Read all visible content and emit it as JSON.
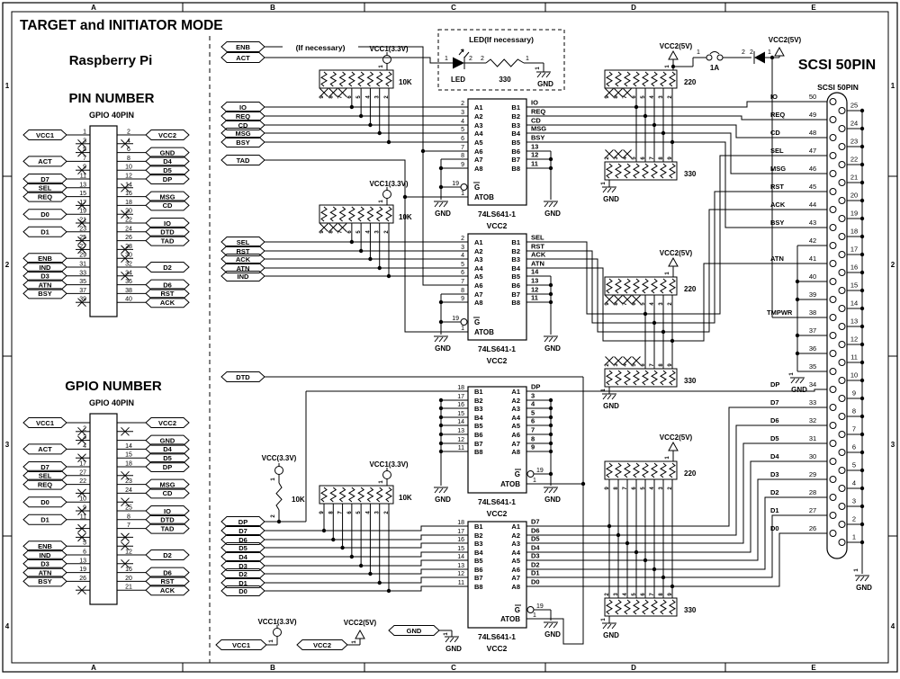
{
  "title": "TARGET and INITIATOR MODE",
  "ruler": {
    "cols": [
      "A",
      "B",
      "C",
      "D",
      "E"
    ],
    "rows": [
      "1",
      "2",
      "3",
      "4"
    ]
  },
  "raspberry": {
    "label": "Raspberry Pi",
    "pin_block": {
      "title": "PIN NUMBER",
      "subtitle": "GPIO 40PIN",
      "rows": [
        [
          "VCC1",
          "1",
          0,
          "2",
          "VCC2",
          0
        ],
        [
          "",
          "3",
          1,
          "4",
          "",
          1
        ],
        [
          "",
          "5",
          1,
          "6",
          "GND",
          0
        ],
        [
          "ACT",
          "7",
          0,
          "8",
          "D4",
          0
        ],
        [
          "",
          "9",
          1,
          "10",
          "D5",
          0
        ],
        [
          "D7",
          "11",
          0,
          "12",
          "DP",
          0
        ],
        [
          "SEL",
          "13",
          0,
          "14",
          "",
          1
        ],
        [
          "REQ",
          "15",
          0,
          "16",
          "MSG",
          0
        ],
        [
          "",
          "17",
          1,
          "18",
          "CD",
          0
        ],
        [
          "D0",
          "19",
          0,
          "20",
          "",
          1
        ],
        [
          "",
          "21",
          1,
          "22",
          "IO",
          0
        ],
        [
          "D1",
          "23",
          0,
          "24",
          "DTD",
          0
        ],
        [
          "",
          "25",
          1,
          "26",
          "TAD",
          0
        ],
        [
          "",
          "27",
          1,
          "28",
          "",
          1
        ],
        [
          "ENB",
          "29",
          0,
          "30",
          "",
          1
        ],
        [
          "IND",
          "31",
          0,
          "32",
          "D2",
          0
        ],
        [
          "D3",
          "33",
          0,
          "34",
          "",
          1
        ],
        [
          "ATN",
          "35",
          0,
          "36",
          "D6",
          0
        ],
        [
          "BSY",
          "37",
          0,
          "38",
          "RST",
          0
        ],
        [
          "",
          "39",
          1,
          "40",
          "ACK",
          0
        ]
      ]
    },
    "gpio_block": {
      "title": "GPIO NUMBER",
      "subtitle": "GPIO 40PIN",
      "rows": [
        [
          "VCC1",
          "",
          0,
          "",
          "VCC2",
          0
        ],
        [
          "",
          "2",
          1,
          "",
          "",
          1
        ],
        [
          "",
          "3",
          1,
          "",
          "GND",
          0
        ],
        [
          "ACT",
          "4",
          0,
          "14",
          "D4",
          0
        ],
        [
          "",
          "",
          1,
          "15",
          "D5",
          0
        ],
        [
          "D7",
          "17",
          0,
          "18",
          "DP",
          0
        ],
        [
          "SEL",
          "27",
          0,
          "",
          "",
          1
        ],
        [
          "REQ",
          "22",
          0,
          "23",
          "MSG",
          0
        ],
        [
          "",
          "",
          1,
          "24",
          "CD",
          0
        ],
        [
          "D0",
          "10",
          0,
          "",
          "",
          1
        ],
        [
          "",
          "9",
          1,
          "25",
          "IO",
          0
        ],
        [
          "D1",
          "11",
          0,
          "8",
          "DTD",
          0
        ],
        [
          "",
          "",
          1,
          "7",
          "TAD",
          0
        ],
        [
          "",
          "",
          1,
          "",
          "",
          1
        ],
        [
          "ENB",
          "5",
          0,
          "",
          "",
          1
        ],
        [
          "IND",
          "6",
          0,
          "12",
          "D2",
          0
        ],
        [
          "D3",
          "13",
          0,
          "",
          "",
          1
        ],
        [
          "ATN",
          "19",
          0,
          "16",
          "D6",
          0
        ],
        [
          "BSY",
          "26",
          0,
          "20",
          "RST",
          0
        ],
        [
          "",
          "",
          1,
          "21",
          "ACK",
          0
        ]
      ]
    }
  },
  "note_if_necessary": "(If necessary)",
  "flags": {
    "top": [
      "ENB",
      "ACT"
    ],
    "group1": [
      "IO",
      "REQ",
      "CD",
      "MSG",
      "BSY"
    ],
    "tad": "TAD",
    "group2": [
      "SEL",
      "RST",
      "ACK",
      "ATN"
    ],
    "ind": "IND",
    "dtd": "DTD",
    "group3": [
      "DP",
      "D7",
      "D6",
      "D5",
      "D4",
      "D3",
      "D2",
      "D1",
      "D0"
    ],
    "bottom": [
      "VCC1",
      "VCC2",
      "GND"
    ]
  },
  "power": {
    "vcc1": "VCC1(3.3V)",
    "vcc": "VCC(3.3V)",
    "vcc2": "VCC2(5V)",
    "gnd": "GND",
    "pin1": "1",
    "pin2": "2"
  },
  "networks": {
    "r10k": "10K",
    "r220": "220",
    "r330": "330",
    "sip_desc": [
      "9",
      "8",
      "7",
      "6",
      "5",
      "4",
      "3",
      "2"
    ],
    "sip_asc": [
      "2",
      "3",
      "4",
      "5",
      "6",
      "7",
      "8",
      "9"
    ]
  },
  "led": {
    "title": "LED(If necessary)",
    "led_label": "LED",
    "res_value": "330",
    "gnd": "GND",
    "pins": [
      "1",
      "2",
      "2",
      "1"
    ]
  },
  "fuse": {
    "value": "1A",
    "pins": [
      "1",
      "2",
      "2",
      "1"
    ]
  },
  "chips": [
    {
      "name": "74LS641-1",
      "power": "VCC2",
      "mirror": false,
      "left_nums": [
        "2",
        "3",
        "4",
        "5",
        "6",
        "7",
        "8",
        "9"
      ],
      "left_lbls": [
        "A1",
        "A2",
        "A3",
        "A4",
        "A5",
        "A6",
        "A7",
        "A8"
      ],
      "right_lbls": [
        "B1",
        "B2",
        "B3",
        "B4",
        "B5",
        "B6",
        "B7",
        "B8"
      ],
      "right_sigs": [
        "IO",
        "REQ",
        "CD",
        "MSG",
        "BSY",
        "13",
        "12",
        "11"
      ],
      "g_num": "19",
      "g_lbl": "G",
      "atob_num": "1",
      "atob_lbl": "ATOB"
    },
    {
      "name": "74LS641-1",
      "power": "VCC2",
      "mirror": false,
      "left_nums": [
        "2",
        "3",
        "4",
        "5",
        "6",
        "7",
        "8",
        "9"
      ],
      "left_lbls": [
        "A1",
        "A2",
        "A3",
        "A4",
        "A5",
        "A6",
        "A7",
        "A8"
      ],
      "right_lbls": [
        "B1",
        "B2",
        "B3",
        "B4",
        "B5",
        "B6",
        "B7",
        "B8"
      ],
      "right_sigs": [
        "SEL",
        "RST",
        "ACK",
        "ATN",
        "14",
        "13",
        "12",
        "11"
      ],
      "g_num": "19",
      "g_lbl": "G",
      "atob_num": "1",
      "atob_lbl": "ATOB"
    },
    {
      "name": "74LS641-1",
      "power": "VCC2",
      "mirror": true,
      "left_nums": [
        "18",
        "17",
        "16",
        "15",
        "14",
        "13",
        "12",
        "11"
      ],
      "left_lbls": [
        "B1",
        "B2",
        "B3",
        "B4",
        "B5",
        "B6",
        "B7",
        "B8"
      ],
      "right_lbls": [
        "A1",
        "A2",
        "A3",
        "A4",
        "A5",
        "A6",
        "A7",
        "A8"
      ],
      "right_sigs": [
        "DP",
        "3",
        "4",
        "5",
        "6",
        "7",
        "8",
        "9"
      ],
      "g_num": "19",
      "g_lbl": "G",
      "atob_num": "1",
      "atob_lbl": "ATOB"
    },
    {
      "name": "74LS641-1",
      "power": "VCC2",
      "mirror": true,
      "left_nums": [
        "18",
        "17",
        "16",
        "15",
        "14",
        "13",
        "12",
        "11"
      ],
      "left_lbls": [
        "B1",
        "B2",
        "B3",
        "B4",
        "B5",
        "B6",
        "B7",
        "B8"
      ],
      "right_lbls": [
        "A1",
        "A2",
        "A3",
        "A4",
        "A5",
        "A6",
        "A7",
        "A8"
      ],
      "right_sigs": [
        "D7",
        "D6",
        "D5",
        "D4",
        "D3",
        "D2",
        "D1",
        "D0"
      ],
      "g_num": "19",
      "g_lbl": "G",
      "atob_num": "1",
      "atob_lbl": "ATOB"
    }
  ],
  "scsi": {
    "title": "SCSI 50PIN",
    "subtitle": "SCSI 50PIN",
    "gnd": "GND",
    "left_pins": [
      [
        "50",
        "IO"
      ],
      [
        "49",
        "REQ"
      ],
      [
        "48",
        "CD"
      ],
      [
        "47",
        "SEL"
      ],
      [
        "46",
        "MSG"
      ],
      [
        "45",
        "RST"
      ],
      [
        "44",
        "ACK"
      ],
      [
        "43",
        "BSY"
      ],
      [
        "42",
        ""
      ],
      [
        "41",
        "ATN"
      ],
      [
        "40",
        ""
      ],
      [
        "39",
        ""
      ],
      [
        "38",
        "TMPWR"
      ],
      [
        "37",
        ""
      ],
      [
        "36",
        ""
      ],
      [
        "35",
        ""
      ],
      [
        "34",
        "DP"
      ],
      [
        "33",
        "D7"
      ],
      [
        "32",
        "D6"
      ],
      [
        "31",
        "D5"
      ],
      [
        "30",
        "D4"
      ],
      [
        "29",
        "D3"
      ],
      [
        "28",
        "D2"
      ],
      [
        "27",
        "D1"
      ],
      [
        "26",
        "D0"
      ]
    ],
    "right_pins": [
      "25",
      "24",
      "23",
      "22",
      "21",
      "20",
      "19",
      "18",
      "17",
      "16",
      "15",
      "14",
      "13",
      "12",
      "11",
      "10",
      "9",
      "8",
      "7",
      "6",
      "5",
      "4",
      "3",
      "2",
      "1"
    ]
  }
}
